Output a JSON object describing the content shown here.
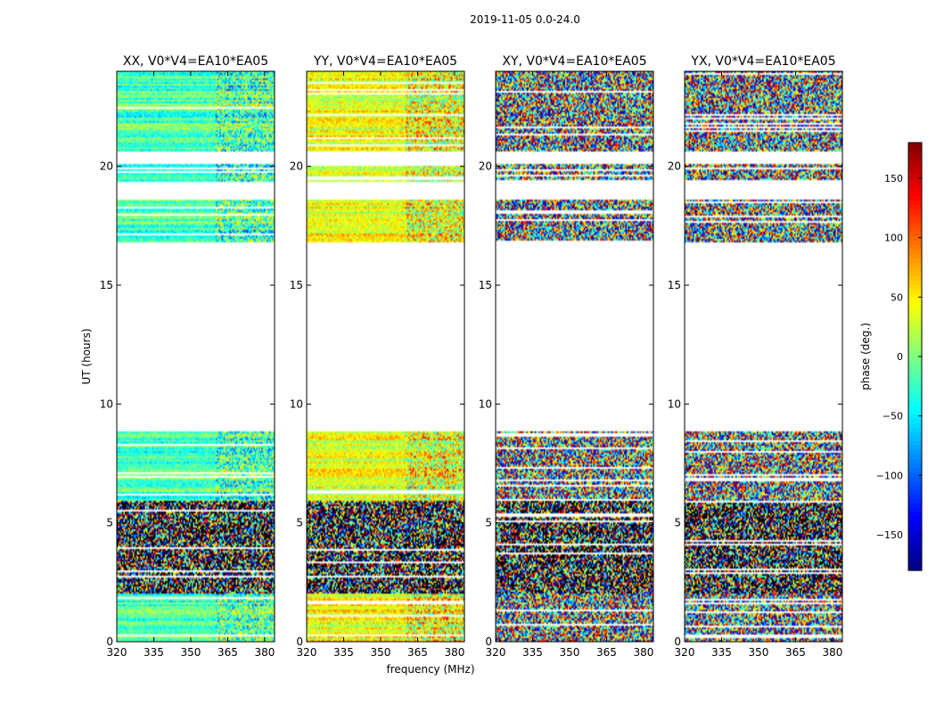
{
  "chart_data": {
    "type": "heatmap",
    "suptitle": "2019-11-05 0.0-24.0",
    "xlabel": "frequency (MHz)",
    "ylabel": "UT (hours)",
    "xlim": [
      320,
      384
    ],
    "ylim": [
      0,
      24
    ],
    "xticks": [
      320,
      335,
      350,
      365,
      380
    ],
    "yticks": [
      0,
      5,
      10,
      15,
      20
    ],
    "colorbar": {
      "label": "phase (deg.)",
      "range": [
        -180,
        180
      ],
      "ticks": [
        -150,
        -100,
        -50,
        0,
        50,
        100,
        150
      ],
      "colormap": "jet"
    },
    "panels": [
      {
        "title": "XX, V0*V4=EA10*EA05",
        "polarization": "XX",
        "mode": "coherent",
        "base_phase": -20,
        "spread": 50
      },
      {
        "title": "YY, V0*V4=EA10*EA05",
        "polarization": "YY",
        "mode": "coherent",
        "base_phase": 40,
        "spread": 55
      },
      {
        "title": "XY, V0*V4=EA10*EA05",
        "polarization": "XY",
        "mode": "noise",
        "base_phase": 0,
        "spread": 180
      },
      {
        "title": "YX, V0*V4=EA10*EA05",
        "polarization": "YX",
        "mode": "noise",
        "base_phase": 0,
        "spread": 180
      }
    ],
    "data_ranges_ut_hours": [
      [
        0.0,
        8.85
      ],
      [
        16.8,
        18.6
      ],
      [
        19.35,
        20.1
      ],
      [
        20.65,
        24.0
      ]
    ],
    "black_banded_ranges_ut_hours": [
      [
        2.0,
        5.9
      ]
    ]
  }
}
